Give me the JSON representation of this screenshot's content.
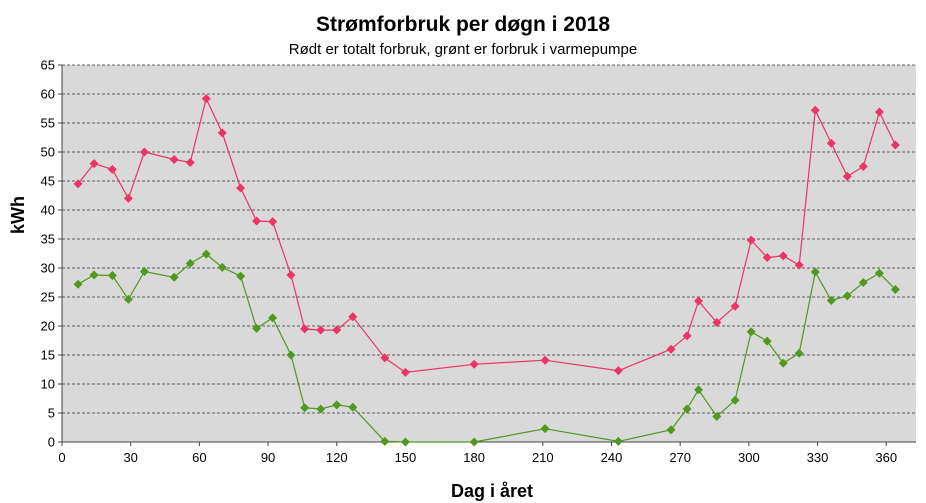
{
  "chart_data": {
    "type": "line",
    "title": "Strømforbruk per døgn i 2018",
    "subtitle": "Rødt er totalt forbruk, grønt er forbruk i varmepumpe",
    "xlabel": "Dag i året",
    "ylabel": "kWh",
    "xlim": [
      0,
      373
    ],
    "ylim": [
      0,
      65
    ],
    "xticks": [
      0,
      30,
      60,
      90,
      120,
      150,
      180,
      210,
      240,
      270,
      300,
      330,
      360
    ],
    "yticks": [
      0,
      5,
      10,
      15,
      20,
      25,
      30,
      35,
      40,
      45,
      50,
      55,
      60,
      65
    ],
    "grid": "horizontal-dashed",
    "background": "#d9d9d9",
    "series": [
      {
        "color": "#ee3366",
        "x": [
          7,
          14,
          22,
          29,
          36,
          49,
          56,
          63,
          70,
          78,
          85,
          92,
          100,
          106,
          113,
          120,
          127,
          141,
          150,
          180,
          211,
          243,
          266,
          273,
          278,
          286,
          294,
          301,
          308,
          315,
          322,
          329,
          336,
          343,
          350,
          357,
          364
        ],
        "y": [
          44.5,
          48,
          47,
          42,
          50,
          48.7,
          48.2,
          59.2,
          53.3,
          43.8,
          38.1,
          38,
          28.8,
          19.5,
          19.3,
          19.3,
          21.6,
          14.5,
          12,
          13.4,
          14.1,
          12.3,
          16,
          18.3,
          24.3,
          20.6,
          23.4,
          34.8,
          31.8,
          32.1,
          30.5,
          57.2,
          51.5,
          45.8,
          47.5,
          56.9,
          51.2
        ]
      },
      {
        "color": "#4f9a1e",
        "x": [
          7,
          14,
          22,
          29,
          36,
          49,
          56,
          63,
          70,
          78,
          85,
          92,
          100,
          106,
          113,
          120,
          127,
          141,
          150,
          180,
          211,
          243,
          266,
          273,
          278,
          286,
          294,
          301,
          308,
          315,
          322,
          329,
          336,
          343,
          350,
          357,
          364
        ],
        "y": [
          27.2,
          28.8,
          28.7,
          24.6,
          29.4,
          28.4,
          30.8,
          32.4,
          30.1,
          28.6,
          19.6,
          21.4,
          15,
          5.9,
          5.7,
          6.4,
          6,
          0.1,
          0,
          0,
          2.3,
          0.1,
          2.1,
          5.7,
          9,
          4.4,
          7.2,
          19,
          17.4,
          13.6,
          15.3,
          29.3,
          24.4,
          25.2,
          27.5,
          29.1,
          26.3
        ]
      }
    ]
  }
}
